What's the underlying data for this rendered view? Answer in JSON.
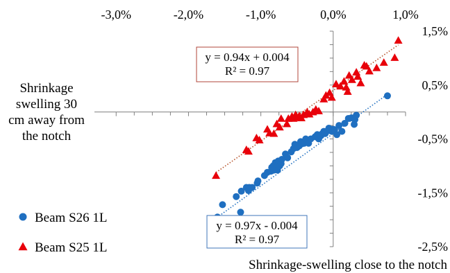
{
  "chart_data": {
    "type": "scatter",
    "title": "",
    "xlabel": "Shrinkage-swelling close to the notch",
    "ylabel_lines": [
      "Shrinkage",
      "swelling 30",
      "cm away from",
      "the notch"
    ],
    "xlim": [
      -0.033,
      0.01
    ],
    "ylim": [
      -0.025,
      0.015
    ],
    "x_ticks": [
      -0.03,
      -0.02,
      -0.01,
      0.0,
      0.01
    ],
    "x_tick_labels": [
      "-3,0%",
      "-2,0%",
      "-1,0%",
      "0,0%",
      "1,0%"
    ],
    "y_ticks": [
      0.015,
      0.005,
      -0.005,
      -0.015,
      -0.025
    ],
    "y_tick_labels": [
      "1,5%",
      "0,5%",
      "-0,5%",
      "-1,5%",
      "-2,5%"
    ],
    "grid": false,
    "legend_position": "left",
    "series": [
      {
        "name": "Beam S26 1L",
        "color": "#1f6fc0",
        "marker": "circle",
        "trendline": {
          "slope": 0.97,
          "intercept": -0.004,
          "color": "#1f6fc0",
          "box_color": "#3f74b8",
          "equation": "y = 0.97x - 0.004",
          "r2": "R² = 0.97"
        },
        "points": [
          [
            -0.0167,
            -0.02
          ],
          [
            -0.016,
            -0.0195
          ],
          [
            -0.0153,
            -0.0172
          ],
          [
            -0.0128,
            -0.0186
          ],
          [
            -0.0134,
            -0.0157
          ],
          [
            -0.0127,
            -0.0147
          ],
          [
            -0.012,
            -0.014
          ],
          [
            -0.0117,
            -0.0146
          ],
          [
            -0.0116,
            -0.014
          ],
          [
            -0.0112,
            -0.014
          ],
          [
            -0.0105,
            -0.0132
          ],
          [
            -0.0104,
            -0.0128
          ],
          [
            -0.0095,
            -0.0118
          ],
          [
            -0.0091,
            -0.0112
          ],
          [
            -0.0086,
            -0.011
          ],
          [
            -0.0085,
            -0.0103
          ],
          [
            -0.0083,
            -0.01
          ],
          [
            -0.0082,
            -0.0108
          ],
          [
            -0.008,
            -0.0094
          ],
          [
            -0.0078,
            -0.0102
          ],
          [
            -0.0077,
            -0.0108
          ],
          [
            -0.0076,
            -0.0091
          ],
          [
            -0.0074,
            -0.01
          ],
          [
            -0.0072,
            -0.0096
          ],
          [
            -0.0071,
            -0.0088
          ],
          [
            -0.0066,
            -0.0078
          ],
          [
            -0.0063,
            -0.0085
          ],
          [
            -0.0058,
            -0.0074
          ],
          [
            -0.0055,
            -0.0068
          ],
          [
            -0.0053,
            -0.006
          ],
          [
            -0.005,
            -0.0066
          ],
          [
            -0.0047,
            -0.0063
          ],
          [
            -0.0045,
            -0.0055
          ],
          [
            -0.0043,
            -0.0059
          ],
          [
            -0.004,
            -0.0058
          ],
          [
            -0.0038,
            -0.005
          ],
          [
            -0.0034,
            -0.0058
          ],
          [
            -0.0031,
            -0.005
          ],
          [
            -0.0025,
            -0.0046
          ],
          [
            -0.0022,
            -0.0042
          ],
          [
            -0.002,
            -0.005
          ],
          [
            -0.0017,
            -0.0044
          ],
          [
            -0.0015,
            -0.004
          ],
          [
            -0.0013,
            -0.0036
          ],
          [
            -0.0011,
            -0.004
          ],
          [
            -0.0008,
            -0.0035
          ],
          [
            -0.0006,
            -0.003
          ],
          [
            -0.0004,
            -0.0034
          ],
          [
            -0.0002,
            -0.0036
          ],
          [
            0.0,
            -0.0032
          ],
          [
            0.0002,
            -0.0033
          ],
          [
            0.0005,
            -0.0042
          ],
          [
            0.0008,
            -0.0025
          ],
          [
            0.0012,
            -0.0036
          ],
          [
            0.0016,
            -0.0021
          ],
          [
            0.0021,
            -0.0012
          ],
          [
            0.0025,
            -0.0011
          ],
          [
            0.0029,
            -0.0023
          ],
          [
            0.003,
            -0.0014
          ],
          [
            0.0032,
            -0.0006
          ],
          [
            0.0075,
            0.003
          ]
        ]
      },
      {
        "name": "Beam S25 1L",
        "color": "#e8000a",
        "marker": "triangle",
        "trendline": {
          "slope": 0.94,
          "intercept": 0.004,
          "color": "#b5532a",
          "box_color": "#b0453a",
          "equation": "y = 0.94x + 0.004",
          "r2": "R² = 0.97"
        },
        "points": [
          [
            -0.0162,
            -0.0118
          ],
          [
            -0.012,
            -0.007
          ],
          [
            -0.0117,
            -0.0073
          ],
          [
            -0.0106,
            -0.0048
          ],
          [
            -0.0102,
            -0.0052
          ],
          [
            -0.0091,
            -0.0032
          ],
          [
            -0.0088,
            -0.0039
          ],
          [
            -0.0082,
            -0.004
          ],
          [
            -0.0078,
            -0.0022
          ],
          [
            -0.0074,
            -0.0028
          ],
          [
            -0.0072,
            -0.0012
          ],
          [
            -0.0064,
            -0.0022
          ],
          [
            -0.0062,
            -0.0012
          ],
          [
            -0.0057,
            -0.0008
          ],
          [
            -0.0055,
            -0.0012
          ],
          [
            -0.0052,
            -0.0005
          ],
          [
            -0.005,
            -0.001
          ],
          [
            -0.0047,
            -0.0007
          ],
          [
            -0.0044,
            -0.0011
          ],
          [
            -0.0041,
            -0.0005
          ],
          [
            -0.0036,
            0.0
          ],
          [
            -0.0033,
            -0.0004
          ],
          [
            -0.0028,
            0.0
          ],
          [
            -0.0024,
            0.0005
          ],
          [
            -0.002,
            0.0002
          ],
          [
            -0.0013,
            0.0024
          ],
          [
            -0.001,
            0.0031
          ],
          [
            -0.0005,
            0.0036
          ],
          [
            -0.0002,
            0.0027
          ],
          [
            0.0004,
            0.0052
          ],
          [
            0.001,
            0.0048
          ],
          [
            0.0015,
            0.0057
          ],
          [
            0.0018,
            0.0046
          ],
          [
            0.002,
            0.0038
          ],
          [
            0.0022,
            0.0068
          ],
          [
            0.0026,
            0.006
          ],
          [
            0.0032,
            0.0074
          ],
          [
            0.0034,
            0.0066
          ],
          [
            0.0038,
            0.0054
          ],
          [
            0.0043,
            0.0087
          ],
          [
            0.0046,
            0.0085
          ],
          [
            0.005,
            0.0076
          ],
          [
            0.006,
            0.0082
          ],
          [
            0.007,
            0.0092
          ],
          [
            0.0085,
            0.0101
          ],
          [
            0.009,
            0.0133
          ]
        ]
      }
    ]
  }
}
